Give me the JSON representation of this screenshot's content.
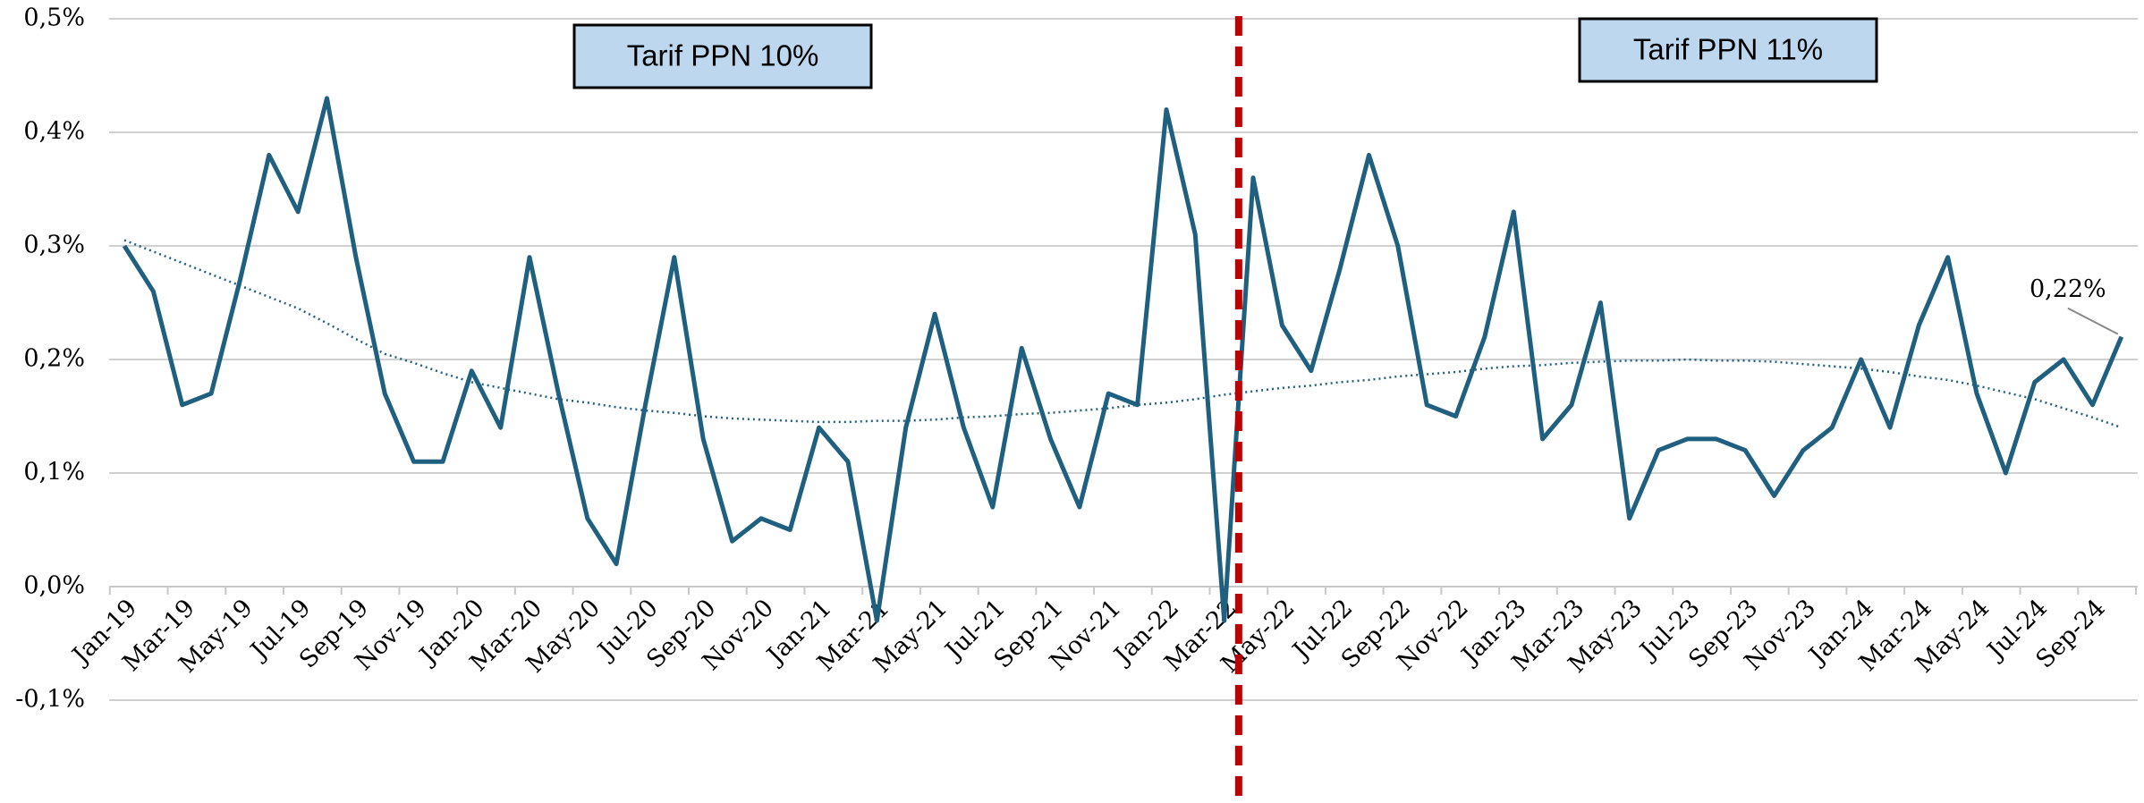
{
  "chart_data": {
    "type": "line",
    "annotations": [
      "Tarif PPN 10%",
      "Tarif PPN 11%"
    ],
    "categories": [
      "Jan-19",
      null,
      "Mar-19",
      null,
      "May-19",
      null,
      "Jul-19",
      null,
      "Sep-19",
      null,
      "Nov-19",
      null,
      "Jan-20",
      null,
      "Mar-20",
      null,
      "May-20",
      null,
      "Jul-20",
      null,
      "Sep-20",
      null,
      "Nov-20",
      null,
      "Jan-21",
      null,
      "Mar-21",
      null,
      "May-21",
      null,
      "Jul-21",
      null,
      "Sep-21",
      null,
      "Nov-21",
      null,
      "Jan-22",
      null,
      "Mar-22",
      null,
      "May-22",
      null,
      "Jul-22",
      null,
      "Sep-22",
      null,
      "Nov-22",
      null,
      "Jan-23",
      null,
      "Mar-23",
      null,
      "May-23",
      null,
      "Jul-23",
      null,
      "Sep-23",
      null,
      "Nov-23",
      null,
      "Jan-24",
      null,
      "Mar-24",
      null,
      "May-24",
      null,
      "Jul-24",
      null,
      "Sep-24",
      null
    ],
    "series": [
      {
        "color": "#1f5f7f",
        "values": [
          0.3,
          0.26,
          0.16,
          0.17,
          0.27,
          0.38,
          0.33,
          0.43,
          0.29,
          0.17,
          0.11,
          0.11,
          0.19,
          0.14,
          0.29,
          0.17,
          0.06,
          0.02,
          0.16,
          0.29,
          0.13,
          0.04,
          0.06,
          0.05,
          0.14,
          0.11,
          -0.03,
          0.14,
          0.24,
          0.14,
          0.07,
          0.21,
          0.13,
          0.07,
          0.17,
          0.16,
          0.42,
          0.31,
          -0.03,
          0.36,
          0.23,
          0.19,
          0.28,
          0.38,
          0.3,
          0.16,
          0.15,
          0.22,
          0.33,
          0.13,
          0.16,
          0.25,
          0.06,
          0.12,
          0.13,
          0.13,
          0.12,
          0.08,
          0.12,
          0.14,
          0.2,
          0.14,
          0.23,
          0.29,
          0.17,
          0.1,
          0.18,
          0.2,
          0.16,
          0.22
        ],
        "value_labels": [
          null,
          null,
          null,
          null,
          null,
          null,
          null,
          null,
          null,
          null,
          null,
          null,
          null,
          null,
          null,
          null,
          null,
          null,
          null,
          null,
          null,
          null,
          null,
          null,
          null,
          null,
          null,
          null,
          null,
          null,
          null,
          null,
          null,
          null,
          null,
          null,
          null,
          null,
          null,
          null,
          null,
          null,
          null,
          null,
          null,
          null,
          null,
          null,
          null,
          null,
          null,
          null,
          null,
          null,
          null,
          null,
          null,
          null,
          null,
          null,
          null,
          null,
          null,
          null,
          null,
          null,
          null,
          null,
          null,
          "0,22%"
        ]
      },
      {
        "color": "#1f5f7f",
        "style": "dotted",
        "values": [
          0.305,
          0.295,
          0.285,
          0.275,
          0.265,
          0.255,
          0.245,
          0.232,
          0.218,
          0.205,
          0.197,
          0.188,
          0.18,
          0.175,
          0.17,
          0.165,
          0.162,
          0.158,
          0.155,
          0.153,
          0.15,
          0.148,
          0.147,
          0.146,
          0.145,
          0.145,
          0.146,
          0.146,
          0.147,
          0.149,
          0.15,
          0.152,
          0.153,
          0.155,
          0.157,
          0.16,
          0.162,
          0.165,
          0.169,
          0.172,
          0.175,
          0.177,
          0.18,
          0.182,
          0.185,
          0.187,
          0.189,
          0.192,
          0.194,
          0.195,
          0.197,
          0.198,
          0.199,
          0.199,
          0.2,
          0.199,
          0.199,
          0.198,
          0.196,
          0.194,
          0.192,
          0.189,
          0.185,
          0.182,
          0.177,
          0.171,
          0.165,
          0.157,
          0.149,
          0.14
        ]
      }
    ],
    "ylim": [
      -0.1,
      0.5
    ],
    "yticks": [
      {
        "value": -0.1,
        "label": "-0,1%"
      },
      {
        "value": 0,
        "label": "0,0%"
      },
      {
        "value": 0.1,
        "label": "0,1%"
      },
      {
        "value": 0.2,
        "label": "0,2%"
      },
      {
        "value": 0.3,
        "label": "0,3%"
      },
      {
        "value": 0.4,
        "label": "0,4%"
      },
      {
        "value": 0.5,
        "label": "0,5%"
      }
    ],
    "grid": true,
    "divider_color": "#c00000",
    "box_color": "#bdd7ee"
  }
}
